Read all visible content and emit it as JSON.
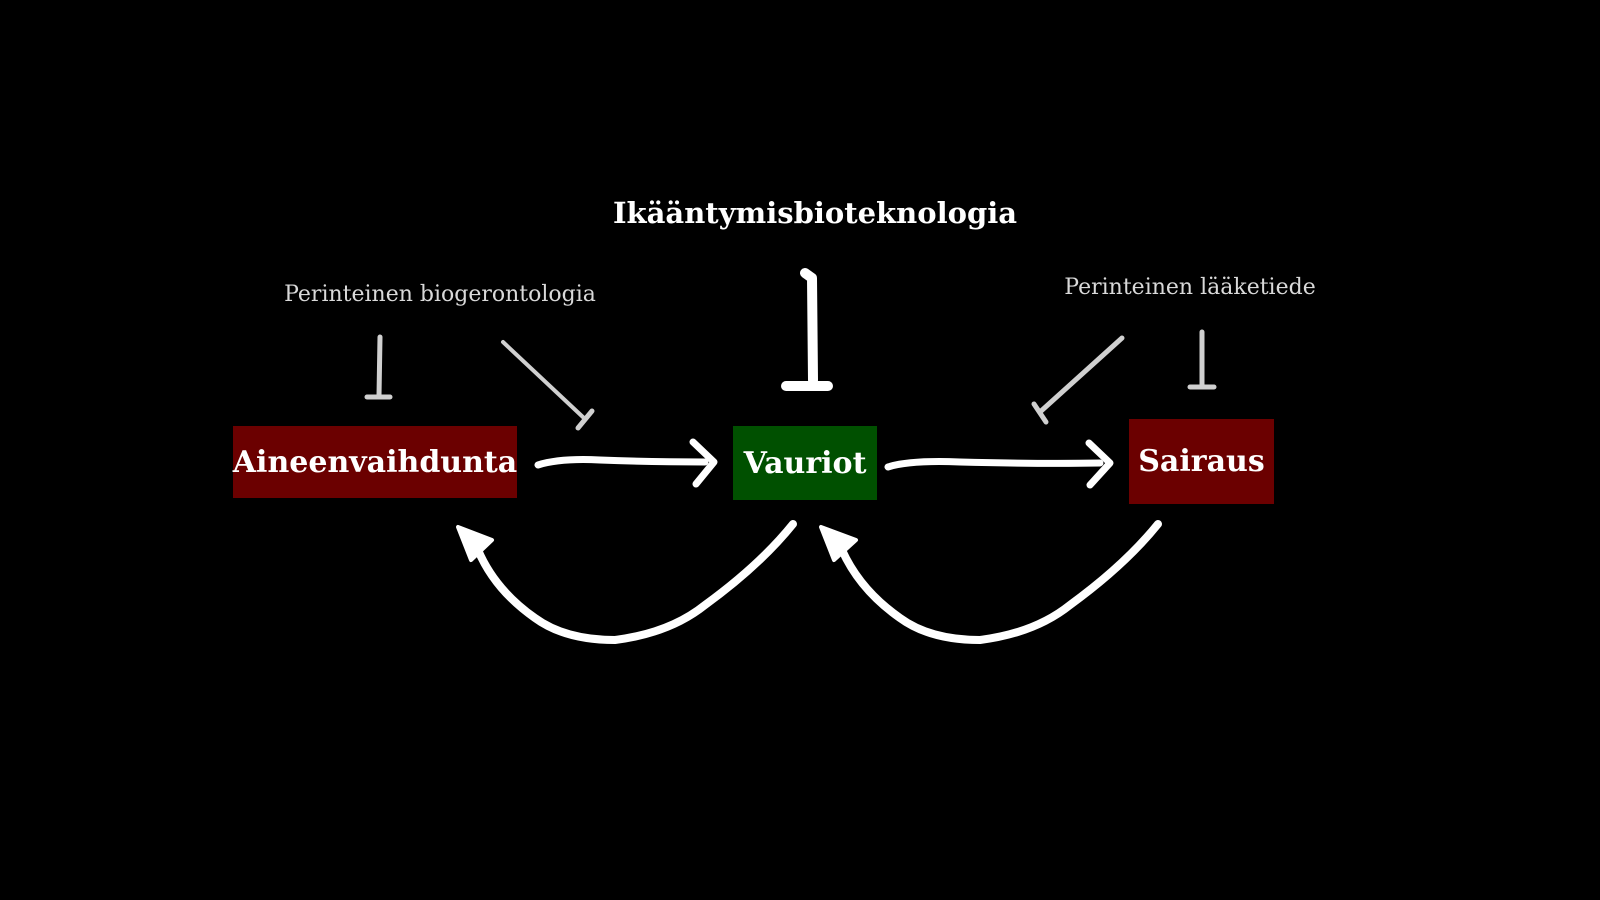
{
  "title": "Ikääntymisbioteknologia",
  "side_labels": {
    "biogerontology": "Perinteinen biogerontologia",
    "medicine": "Perinteinen lääketiede"
  },
  "nodes": {
    "metabolism": {
      "label": "Aineenvaihdunta",
      "color": "#6b0000"
    },
    "damage": {
      "label": "Vauriot",
      "color": "#005000"
    },
    "disease": {
      "label": "Sairaus",
      "color": "#6b0000"
    }
  },
  "colors": {
    "background": "#000000",
    "arrow": "#ffffff",
    "inhibitor_minor": "#d0d0d0",
    "inhibitor_major": "#ffffff"
  },
  "edges": [
    {
      "from": "Aineenvaihdunta",
      "to": "Vauriot",
      "type": "arrow"
    },
    {
      "from": "Vauriot",
      "to": "Sairaus",
      "type": "arrow"
    },
    {
      "from": "Vauriot",
      "to": "Aineenvaihdunta",
      "type": "feedback-arrow"
    },
    {
      "from": "Sairaus",
      "to": "Vauriot",
      "type": "feedback-arrow"
    },
    {
      "from": "Perinteinen biogerontologia",
      "to": "Aineenvaihdunta",
      "type": "inhibition"
    },
    {
      "from": "Perinteinen biogerontologia",
      "to": "Vauriot",
      "type": "inhibition"
    },
    {
      "from": "Ikääntymisbioteknologia",
      "to": "Vauriot",
      "type": "inhibition"
    },
    {
      "from": "Perinteinen lääketiede",
      "to": "Vauriot",
      "type": "inhibition"
    },
    {
      "from": "Perinteinen lääketiede",
      "to": "Sairaus",
      "type": "inhibition"
    }
  ]
}
